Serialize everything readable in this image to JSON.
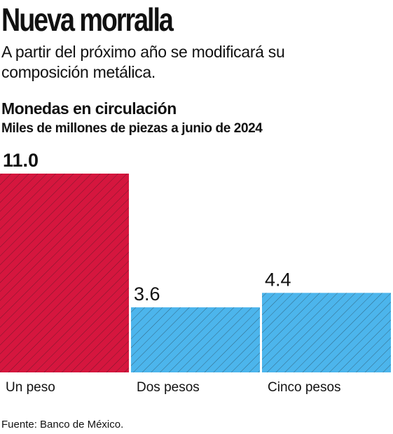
{
  "header": {
    "title": "Nueva morralla",
    "dek": "A partir del próximo año se modificará su composición metálica."
  },
  "chart_data": {
    "type": "bar",
    "title": "Monedas en circulación",
    "subtitle": "Miles de millones de piezas a junio de 2024",
    "categories": [
      "Un peso",
      "Dos pesos",
      "Cinco pesos"
    ],
    "values": [
      11.0,
      3.6,
      4.4
    ],
    "value_labels": [
      "11.0",
      "3.6",
      "4.4"
    ],
    "colors": [
      "#d5163e",
      "#4cb5ec",
      "#4cb5ec"
    ],
    "ylim": [
      0,
      11.0
    ],
    "grid": false,
    "legend": "none",
    "bar_pattern": "diagonal-hatch"
  },
  "footer": {
    "source": "Fuente: Banco de México."
  }
}
